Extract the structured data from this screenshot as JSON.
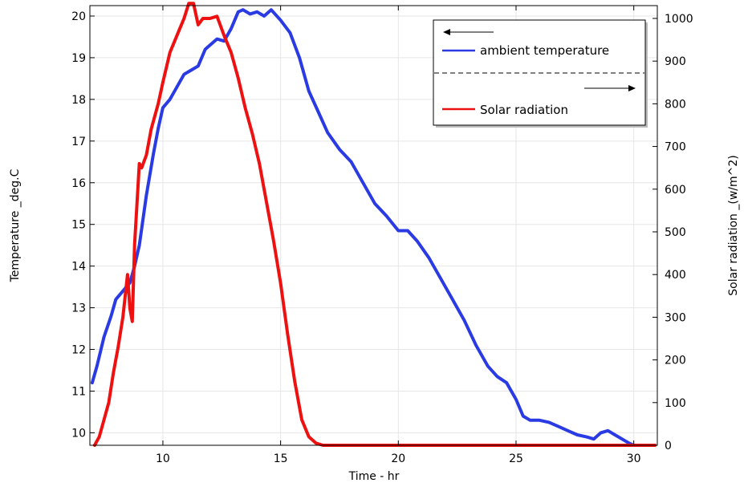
{
  "chart_data": {
    "type": "line",
    "xlabel": "Time - hr",
    "ylabel_left": "Temperature _deg.C",
    "ylabel_right": "Solar radiation _(w/m^2)",
    "xlim": [
      6.9,
      31.0
    ],
    "ylim_left": [
      9.7,
      20.25
    ],
    "ylim_right": [
      0,
      1030
    ],
    "xticks": [
      10,
      15,
      20,
      25,
      30
    ],
    "yticks_left": [
      10,
      11,
      12,
      13,
      14,
      15,
      16,
      17,
      18,
      19,
      20
    ],
    "yticks_right": [
      0,
      100,
      200,
      300,
      400,
      500,
      600,
      700,
      800,
      900,
      1000
    ],
    "grid": true,
    "legend_position": "top-right",
    "series": [
      {
        "name": "ambient temperature",
        "axis": "left",
        "color": "#2b3be3",
        "x": [
          7.0,
          7.2,
          7.5,
          7.8,
          8.0,
          8.3,
          8.6,
          8.8,
          9.0,
          9.3,
          9.6,
          9.8,
          10.0,
          10.3,
          10.6,
          10.9,
          11.2,
          11.5,
          11.8,
          12.0,
          12.3,
          12.6,
          12.9,
          13.2,
          13.4,
          13.7,
          14.0,
          14.3,
          14.6,
          15.0,
          15.4,
          15.8,
          16.2,
          16.6,
          17.0,
          17.5,
          18.0,
          18.5,
          19.0,
          19.5,
          20.0,
          20.4,
          20.8,
          21.3,
          21.8,
          22.3,
          22.8,
          23.3,
          23.8,
          24.2,
          24.6,
          25.0,
          25.3,
          25.6,
          26.0,
          26.4,
          26.8,
          27.2,
          27.6,
          28.0,
          28.3,
          28.6,
          28.9,
          29.2,
          29.5,
          29.8,
          30.0
        ],
        "y": [
          11.2,
          11.6,
          12.3,
          12.8,
          13.2,
          13.4,
          13.6,
          14.0,
          14.5,
          15.7,
          16.7,
          17.3,
          17.8,
          18.0,
          18.3,
          18.6,
          18.7,
          18.8,
          19.2,
          19.3,
          19.45,
          19.4,
          19.7,
          20.1,
          20.15,
          20.05,
          20.1,
          20.0,
          20.15,
          19.9,
          19.6,
          19.0,
          18.2,
          17.7,
          17.2,
          16.8,
          16.5,
          16.0,
          15.5,
          15.2,
          14.85,
          14.85,
          14.6,
          14.2,
          13.7,
          13.2,
          12.7,
          12.1,
          11.6,
          11.35,
          11.2,
          10.8,
          10.4,
          10.3,
          10.3,
          10.25,
          10.15,
          10.05,
          9.95,
          9.9,
          9.85,
          10.0,
          10.05,
          9.95,
          9.85,
          9.75,
          9.7
        ]
      },
      {
        "name": "Solar radiation",
        "axis": "right",
        "color": "#ee1111",
        "x": [
          7.1,
          7.3,
          7.5,
          7.7,
          7.9,
          8.1,
          8.3,
          8.5,
          8.6,
          8.7,
          8.8,
          9.0,
          9.1,
          9.3,
          9.5,
          9.8,
          10.0,
          10.3,
          10.6,
          10.9,
          11.1,
          11.3,
          11.5,
          11.7,
          12.0,
          12.3,
          12.6,
          12.9,
          13.2,
          13.5,
          13.8,
          14.1,
          14.4,
          14.7,
          15.0,
          15.3,
          15.6,
          15.9,
          16.2,
          16.5,
          16.8,
          17.2,
          18.0,
          20.0,
          22.0,
          24.0,
          26.0,
          28.0,
          30.0,
          30.9
        ],
        "y": [
          0,
          20,
          60,
          100,
          170,
          230,
          300,
          400,
          320,
          290,
          470,
          660,
          650,
          680,
          740,
          800,
          850,
          920,
          960,
          1000,
          1035,
          1035,
          985,
          1000,
          1000,
          1005,
          960,
          920,
          860,
          790,
          730,
          660,
          570,
          480,
          380,
          260,
          150,
          60,
          20,
          5,
          0,
          0,
          0,
          0,
          0,
          0,
          0,
          0,
          0,
          0
        ]
      }
    ]
  }
}
